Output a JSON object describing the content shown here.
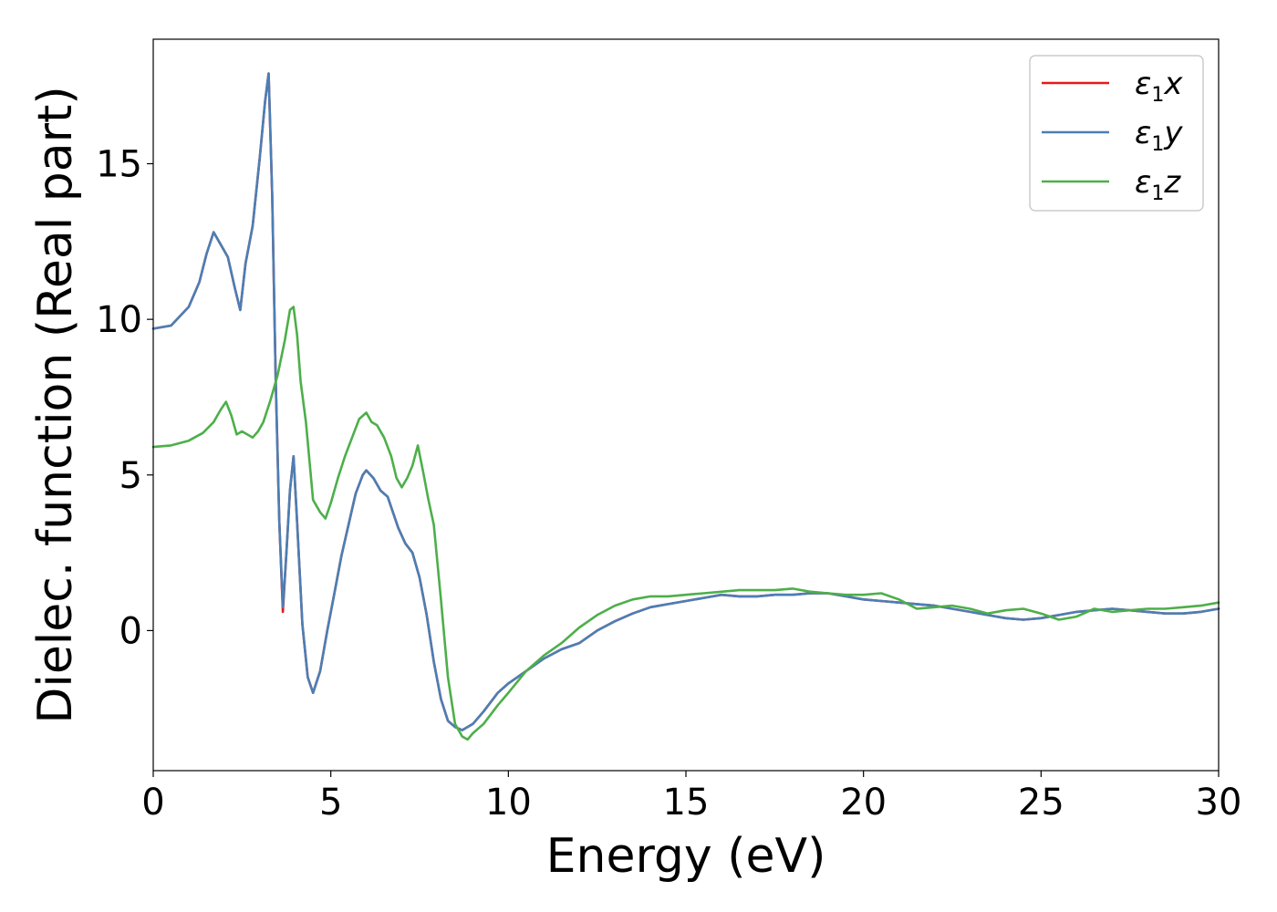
{
  "chart_data": {
    "type": "line",
    "xlabel": "Energy (eV)",
    "ylabel": "Dielec. function (Real part)",
    "xlim": [
      0,
      30
    ],
    "ylim": [
      -4.5,
      19
    ],
    "xticks": [
      0,
      5,
      10,
      15,
      20,
      25,
      30
    ],
    "yticks": [
      0,
      5,
      10,
      15
    ],
    "grid": false,
    "legend_position": "top-right",
    "series": [
      {
        "name": "ε1x",
        "legend_symbol": "ε",
        "legend_sub": "1",
        "legend_var": "x",
        "color": "#e41a1c",
        "x": [
          0,
          0.5,
          1.0,
          1.3,
          1.5,
          1.7,
          1.9,
          2.1,
          2.3,
          2.45,
          2.6,
          2.8,
          3.0,
          3.15,
          3.25,
          3.35,
          3.45,
          3.55,
          3.65,
          3.75,
          3.85,
          3.95,
          4.05,
          4.2,
          4.35,
          4.5,
          4.7,
          4.9,
          5.1,
          5.3,
          5.5,
          5.7,
          5.9,
          6.0,
          6.2,
          6.4,
          6.6,
          6.75,
          6.9,
          7.1,
          7.3,
          7.5,
          7.7,
          7.9,
          8.1,
          8.3,
          8.5,
          8.7,
          9.0,
          9.3,
          9.7,
          10.0,
          10.5,
          11.0,
          11.5,
          12.0,
          12.5,
          13.0,
          13.5,
          14.0,
          14.5,
          15.0,
          15.5,
          16.0,
          16.5,
          17.0,
          17.5,
          18.0,
          18.5,
          19.0,
          19.5,
          20.0,
          20.5,
          21.0,
          21.5,
          22.0,
          22.5,
          23.0,
          23.5,
          24.0,
          24.5,
          25.0,
          25.5,
          26.0,
          26.5,
          27.0,
          27.5,
          28.0,
          28.5,
          29.0,
          29.5,
          30.0
        ],
        "values": [
          9.7,
          9.8,
          10.4,
          11.2,
          12.1,
          12.8,
          12.4,
          12.0,
          11.0,
          10.3,
          11.8,
          13.0,
          15.2,
          17.0,
          17.9,
          14.0,
          8.0,
          3.5,
          0.6,
          2.5,
          4.5,
          5.6,
          3.5,
          0.2,
          -1.5,
          -2.0,
          -1.3,
          0.0,
          1.2,
          2.4,
          3.4,
          4.4,
          5.0,
          5.15,
          4.9,
          4.5,
          4.3,
          3.8,
          3.3,
          2.8,
          2.5,
          1.7,
          0.5,
          -1.0,
          -2.2,
          -2.9,
          -3.1,
          -3.2,
          -3.0,
          -2.6,
          -2.0,
          -1.7,
          -1.3,
          -0.9,
          -0.6,
          -0.4,
          0.0,
          0.3,
          0.55,
          0.75,
          0.85,
          0.95,
          1.05,
          1.15,
          1.1,
          1.1,
          1.15,
          1.15,
          1.2,
          1.2,
          1.1,
          1.0,
          0.95,
          0.9,
          0.85,
          0.8,
          0.7,
          0.6,
          0.5,
          0.4,
          0.35,
          0.4,
          0.5,
          0.6,
          0.65,
          0.7,
          0.65,
          0.6,
          0.55,
          0.55,
          0.6,
          0.7
        ]
      },
      {
        "name": "ε1y",
        "legend_symbol": "ε",
        "legend_sub": "1",
        "legend_var": "y",
        "color": "#4a7fb5",
        "x": [
          0,
          0.5,
          1.0,
          1.3,
          1.5,
          1.7,
          1.9,
          2.1,
          2.3,
          2.45,
          2.6,
          2.8,
          3.0,
          3.15,
          3.25,
          3.35,
          3.45,
          3.55,
          3.65,
          3.75,
          3.85,
          3.95,
          4.05,
          4.2,
          4.35,
          4.5,
          4.7,
          4.9,
          5.1,
          5.3,
          5.5,
          5.7,
          5.9,
          6.0,
          6.2,
          6.4,
          6.6,
          6.75,
          6.9,
          7.1,
          7.3,
          7.5,
          7.7,
          7.9,
          8.1,
          8.3,
          8.5,
          8.7,
          9.0,
          9.3,
          9.7,
          10.0,
          10.5,
          11.0,
          11.5,
          12.0,
          12.5,
          13.0,
          13.5,
          14.0,
          14.5,
          15.0,
          15.5,
          16.0,
          16.5,
          17.0,
          17.5,
          18.0,
          18.5,
          19.0,
          19.5,
          20.0,
          20.5,
          21.0,
          21.5,
          22.0,
          22.5,
          23.0,
          23.5,
          24.0,
          24.5,
          25.0,
          25.5,
          26.0,
          26.5,
          27.0,
          27.5,
          28.0,
          28.5,
          29.0,
          29.5,
          30.0
        ],
        "values": [
          9.7,
          9.8,
          10.4,
          11.2,
          12.1,
          12.8,
          12.4,
          12.0,
          11.0,
          10.3,
          11.8,
          13.0,
          15.2,
          17.0,
          17.9,
          14.0,
          8.0,
          3.5,
          0.75,
          2.5,
          4.5,
          5.6,
          3.5,
          0.2,
          -1.5,
          -2.0,
          -1.3,
          0.0,
          1.2,
          2.4,
          3.4,
          4.4,
          5.0,
          5.15,
          4.9,
          4.5,
          4.3,
          3.8,
          3.3,
          2.8,
          2.5,
          1.7,
          0.5,
          -1.0,
          -2.2,
          -2.9,
          -3.1,
          -3.2,
          -3.0,
          -2.6,
          -2.0,
          -1.7,
          -1.3,
          -0.9,
          -0.6,
          -0.4,
          0.0,
          0.3,
          0.55,
          0.75,
          0.85,
          0.95,
          1.05,
          1.15,
          1.1,
          1.1,
          1.15,
          1.15,
          1.2,
          1.2,
          1.1,
          1.0,
          0.95,
          0.9,
          0.85,
          0.8,
          0.7,
          0.6,
          0.5,
          0.4,
          0.35,
          0.4,
          0.5,
          0.6,
          0.65,
          0.7,
          0.65,
          0.6,
          0.55,
          0.55,
          0.6,
          0.7
        ]
      },
      {
        "name": "ε1z",
        "legend_symbol": "ε",
        "legend_sub": "1",
        "legend_var": "z",
        "color": "#4daf4a",
        "x": [
          0,
          0.5,
          1.0,
          1.4,
          1.7,
          1.9,
          2.05,
          2.2,
          2.35,
          2.5,
          2.65,
          2.8,
          2.95,
          3.1,
          3.3,
          3.5,
          3.7,
          3.85,
          3.95,
          4.05,
          4.15,
          4.3,
          4.5,
          4.7,
          4.85,
          5.0,
          5.2,
          5.4,
          5.6,
          5.8,
          6.0,
          6.15,
          6.3,
          6.5,
          6.7,
          6.85,
          7.0,
          7.15,
          7.3,
          7.45,
          7.6,
          7.75,
          7.9,
          8.1,
          8.3,
          8.5,
          8.7,
          8.85,
          9.0,
          9.3,
          9.7,
          10.0,
          10.5,
          11.0,
          11.5,
          12.0,
          12.5,
          13.0,
          13.5,
          14.0,
          14.5,
          15.0,
          15.5,
          16.0,
          16.5,
          17.0,
          17.5,
          18.0,
          18.5,
          19.0,
          19.5,
          20.0,
          20.5,
          21.0,
          21.5,
          22.0,
          22.5,
          23.0,
          23.5,
          24.0,
          24.5,
          25.0,
          25.5,
          26.0,
          26.5,
          27.0,
          27.5,
          28.0,
          28.5,
          29.0,
          29.5,
          30.0
        ],
        "values": [
          5.9,
          5.95,
          6.1,
          6.35,
          6.7,
          7.1,
          7.35,
          6.9,
          6.3,
          6.4,
          6.3,
          6.2,
          6.4,
          6.7,
          7.4,
          8.2,
          9.3,
          10.3,
          10.4,
          9.5,
          8.0,
          6.7,
          4.2,
          3.8,
          3.6,
          4.1,
          4.9,
          5.6,
          6.2,
          6.8,
          7.0,
          6.7,
          6.6,
          6.2,
          5.6,
          4.9,
          4.6,
          4.9,
          5.3,
          5.95,
          5.1,
          4.2,
          3.4,
          1.0,
          -1.5,
          -3.0,
          -3.4,
          -3.5,
          -3.3,
          -3.0,
          -2.4,
          -2.0,
          -1.3,
          -0.8,
          -0.4,
          0.1,
          0.5,
          0.8,
          1.0,
          1.1,
          1.1,
          1.15,
          1.2,
          1.25,
          1.3,
          1.3,
          1.3,
          1.35,
          1.25,
          1.2,
          1.15,
          1.15,
          1.2,
          1.0,
          0.7,
          0.75,
          0.8,
          0.7,
          0.55,
          0.65,
          0.7,
          0.55,
          0.35,
          0.45,
          0.7,
          0.6,
          0.65,
          0.7,
          0.7,
          0.75,
          0.8,
          0.9
        ]
      }
    ]
  }
}
